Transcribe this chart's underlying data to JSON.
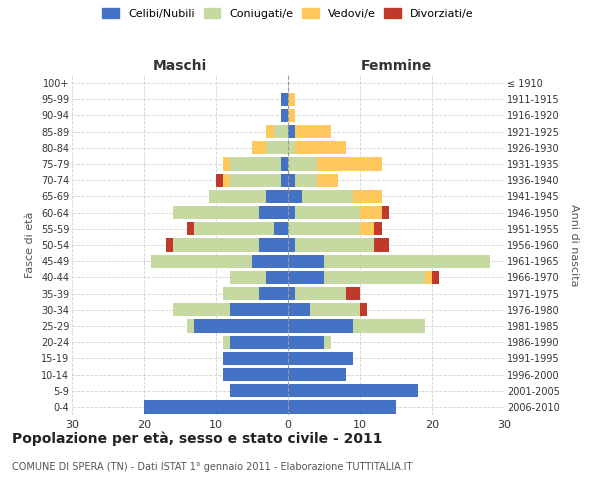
{
  "age_groups": [
    "0-4",
    "5-9",
    "10-14",
    "15-19",
    "20-24",
    "25-29",
    "30-34",
    "35-39",
    "40-44",
    "45-49",
    "50-54",
    "55-59",
    "60-64",
    "65-69",
    "70-74",
    "75-79",
    "80-84",
    "85-89",
    "90-94",
    "95-99",
    "100+"
  ],
  "birth_years": [
    "2006-2010",
    "2001-2005",
    "1996-2000",
    "1991-1995",
    "1986-1990",
    "1981-1985",
    "1976-1980",
    "1971-1975",
    "1966-1970",
    "1961-1965",
    "1956-1960",
    "1951-1955",
    "1946-1950",
    "1941-1945",
    "1936-1940",
    "1931-1935",
    "1926-1930",
    "1921-1925",
    "1916-1920",
    "1911-1915",
    "≤ 1910"
  ],
  "male": {
    "celibi": [
      20,
      8,
      9,
      9,
      8,
      13,
      8,
      4,
      3,
      5,
      4,
      2,
      4,
      3,
      1,
      1,
      0,
      0,
      1,
      1,
      0
    ],
    "coniugati": [
      0,
      0,
      0,
      0,
      1,
      1,
      8,
      5,
      5,
      14,
      12,
      11,
      12,
      8,
      7,
      7,
      3,
      2,
      0,
      0,
      0
    ],
    "vedovi": [
      0,
      0,
      0,
      0,
      0,
      0,
      0,
      0,
      0,
      0,
      0,
      0,
      0,
      0,
      1,
      1,
      2,
      1,
      0,
      0,
      0
    ],
    "divorziati": [
      0,
      0,
      0,
      0,
      0,
      0,
      0,
      0,
      0,
      0,
      1,
      1,
      0,
      0,
      1,
      0,
      0,
      0,
      0,
      0,
      0
    ]
  },
  "female": {
    "nubili": [
      15,
      18,
      8,
      9,
      5,
      9,
      3,
      1,
      5,
      5,
      1,
      0,
      1,
      2,
      1,
      0,
      0,
      1,
      0,
      0,
      0
    ],
    "coniugate": [
      0,
      0,
      0,
      0,
      1,
      10,
      7,
      7,
      14,
      23,
      11,
      10,
      9,
      7,
      3,
      4,
      1,
      0,
      0,
      0,
      0
    ],
    "vedove": [
      0,
      0,
      0,
      0,
      0,
      0,
      0,
      0,
      1,
      0,
      0,
      2,
      3,
      4,
      3,
      9,
      7,
      5,
      1,
      1,
      0
    ],
    "divorziate": [
      0,
      0,
      0,
      0,
      0,
      0,
      1,
      2,
      1,
      0,
      2,
      1,
      1,
      0,
      0,
      0,
      0,
      0,
      0,
      0,
      0
    ]
  },
  "colors": {
    "celibi": "#4472c4",
    "coniugati": "#c5d9a0",
    "vedovi": "#ffc85c",
    "divorziati": "#c0392b"
  },
  "xlim": 30,
  "title": "Popolazione per età, sesso e stato civile - 2011",
  "subtitle": "COMUNE DI SPERA (TN) - Dati ISTAT 1° gennaio 2011 - Elaborazione TUTTITALIA.IT",
  "ylabel_left": "Fasce di età",
  "ylabel_right": "Anni di nascita",
  "xlabel_left": "Maschi",
  "xlabel_right": "Femmine",
  "legend_labels": [
    "Celibi/Nubili",
    "Coniugati/e",
    "Vedovi/e",
    "Divorziati/e"
  ],
  "background_color": "#ffffff",
  "grid_color": "#cccccc"
}
